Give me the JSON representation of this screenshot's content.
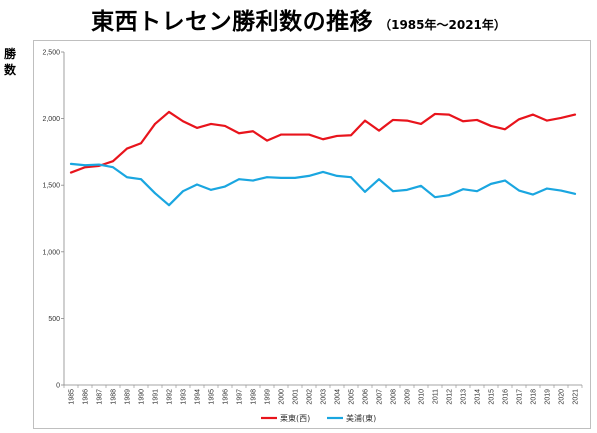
{
  "title": "東西トレセン勝利数の推移",
  "subtitle": "（1985年～2021年）",
  "ylabel": "勝数",
  "chart_data": {
    "type": "line",
    "x": [
      "1985",
      "1986",
      "1987",
      "1988",
      "1989",
      "1990",
      "1991",
      "1992",
      "1993",
      "1994",
      "1995",
      "1996",
      "1997",
      "1998",
      "1999",
      "2000",
      "2001",
      "2002",
      "2003",
      "2004",
      "2005",
      "2006",
      "2007",
      "2008",
      "2009",
      "2010",
      "2011",
      "2012",
      "2013",
      "2014",
      "2015",
      "2016",
      "2017",
      "2018",
      "2019",
      "2020",
      "2021"
    ],
    "ylim": [
      0,
      2500
    ],
    "yticks": [
      "0",
      "500",
      "1,000",
      "1,500",
      "2,000",
      "2,500"
    ],
    "ytick_values": [
      0,
      500,
      1000,
      1500,
      2000,
      2500
    ],
    "grid": false,
    "legend_position": "bottom",
    "series": [
      {
        "name": "栗東(西)",
        "color": "#e8141c",
        "values": [
          1595,
          1635,
          1645,
          1680,
          1775,
          1815,
          1960,
          2050,
          1980,
          1930,
          1960,
          1945,
          1890,
          1905,
          1835,
          1880,
          1880,
          1880,
          1845,
          1870,
          1875,
          1985,
          1910,
          1990,
          1985,
          1960,
          2035,
          2030,
          1980,
          1990,
          1945,
          1920,
          1995,
          2030,
          1985,
          2005,
          2030
        ]
      },
      {
        "name": "美浦(東)",
        "color": "#1aa6e0",
        "values": [
          1660,
          1650,
          1655,
          1635,
          1560,
          1545,
          1440,
          1350,
          1455,
          1505,
          1465,
          1490,
          1545,
          1535,
          1560,
          1555,
          1555,
          1570,
          1600,
          1570,
          1560,
          1450,
          1545,
          1455,
          1465,
          1495,
          1410,
          1425,
          1470,
          1455,
          1510,
          1535,
          1460,
          1430,
          1475,
          1460,
          1435
        ]
      }
    ]
  }
}
